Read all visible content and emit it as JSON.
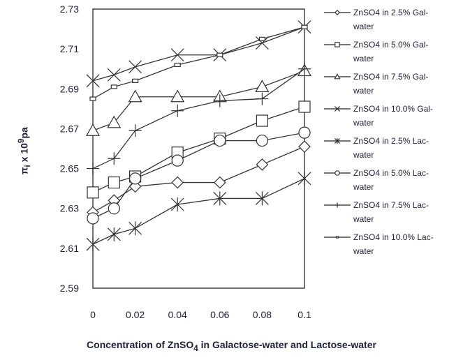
{
  "chart_data": {
    "type": "line",
    "title": "",
    "xlabel_main": "Concentration of ZnSO",
    "xlabel_sub": "4",
    "xlabel_rest": " in Galactose-water and Lactose-water",
    "ylabel_main": "π",
    "ylabel_sub": "i",
    "ylabel_mid": " x 10",
    "ylabel_sup": "9",
    "ylabel_end": "pa",
    "x": [
      0,
      0.01,
      0.02,
      0.04,
      0.06,
      0.08,
      0.1
    ],
    "xlim": [
      0,
      0.1
    ],
    "ylim": [
      2.59,
      2.73
    ],
    "xticks": [
      "0",
      "0.02",
      "0.04",
      "0.06",
      "0.08",
      "0.1"
    ],
    "xtick_values": [
      0,
      0.02,
      0.04,
      0.06,
      0.08,
      0.1
    ],
    "yticks": [
      "2.59",
      "2.61",
      "2.63",
      "2.65",
      "2.67",
      "2.69",
      "2.71",
      "2.73"
    ],
    "ytick_values": [
      2.59,
      2.61,
      2.63,
      2.65,
      2.67,
      2.69,
      2.71,
      2.73
    ],
    "grid": false,
    "legend_position": "right",
    "series": [
      {
        "name": "ZnSO4 in 2.5% Gal-water",
        "marker": "diamond",
        "values": [
          2.628,
          2.634,
          2.641,
          2.643,
          2.643,
          2.652,
          2.661
        ]
      },
      {
        "name": "ZnSO4 in 5.0% Gal-water",
        "marker": "square",
        "values": [
          2.638,
          2.643,
          2.646,
          2.658,
          2.665,
          2.674,
          2.681
        ]
      },
      {
        "name": "ZnSO4 in 7.5% Gal-water",
        "marker": "triangle",
        "values": [
          2.669,
          2.673,
          2.686,
          2.686,
          2.686,
          2.691,
          2.699
        ]
      },
      {
        "name": "ZnSO4 in 10.0% Gal-water",
        "marker": "x",
        "values": [
          2.694,
          2.697,
          2.701,
          2.707,
          2.707,
          2.713,
          2.721
        ]
      },
      {
        "name": "ZnSO4 in 2.5% Lac-water",
        "marker": "asterisk",
        "values": [
          2.612,
          2.617,
          2.62,
          2.632,
          2.635,
          2.635,
          2.645
        ]
      },
      {
        "name": "ZnSO4 in 5.0% Lac-water",
        "marker": "circle",
        "values": [
          2.625,
          2.63,
          2.645,
          2.654,
          2.664,
          2.664,
          2.668
        ]
      },
      {
        "name": "ZnSO4 in 7.5% Lac-water",
        "marker": "plus",
        "values": [
          2.65,
          2.655,
          2.669,
          2.679,
          2.684,
          2.685,
          2.7
        ]
      },
      {
        "name": "ZnSO4 in 10.0% Lac-water",
        "marker": "dash",
        "values": [
          2.685,
          2.691,
          2.694,
          2.702,
          2.707,
          2.715,
          2.721
        ]
      }
    ],
    "colors": {
      "line": "#333333",
      "text": "#1f1f3a"
    }
  },
  "legend": [
    {
      "line1": "ZnSO4 in 2.5% Gal-",
      "line2": "water"
    },
    {
      "line1": "ZnSO4 in 5.0% Gal-",
      "line2": "water"
    },
    {
      "line1": "ZnSO4 in 7.5% Gal-",
      "line2": "water"
    },
    {
      "line1": "ZnSO4 in 10.0% Gal-",
      "line2": "water"
    },
    {
      "line1": "ZnSO4 in 2.5% Lac-",
      "line2": "water"
    },
    {
      "line1": "ZnSO4 in 5.0% Lac-",
      "line2": "water"
    },
    {
      "line1": "ZnSO4 in 7.5% Lac-",
      "line2": "water"
    },
    {
      "line1": "ZnSO4 in 10.0% Lac-",
      "line2": "water"
    }
  ]
}
